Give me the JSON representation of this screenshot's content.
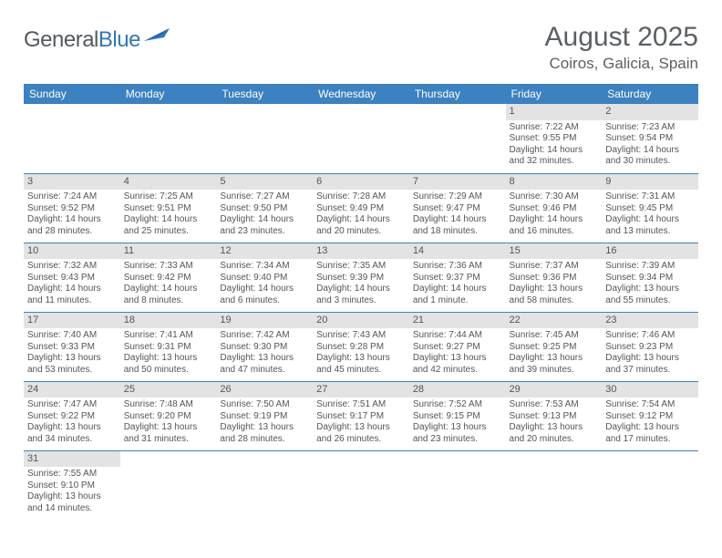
{
  "logo": {
    "text1": "General",
    "text2": "Blue",
    "flag_color": "#2f78b8"
  },
  "header": {
    "title": "August 2025",
    "location": "Coiros, Galicia, Spain"
  },
  "colors": {
    "header_bg": "#3c81c0",
    "header_fg": "#ffffff",
    "daynum_bg": "#e3e3e3",
    "row_divider": "#3c81c0",
    "text": "#555555",
    "logo_gray": "#555a5e",
    "logo_blue": "#2f78b8"
  },
  "weekdays": [
    "Sunday",
    "Monday",
    "Tuesday",
    "Wednesday",
    "Thursday",
    "Friday",
    "Saturday"
  ],
  "calendar": {
    "type": "table",
    "columns": 7,
    "rows": [
      [
        {
          "empty": true
        },
        {
          "empty": true
        },
        {
          "empty": true
        },
        {
          "empty": true
        },
        {
          "empty": true
        },
        {
          "day": "1",
          "sunrise": "Sunrise: 7:22 AM",
          "sunset": "Sunset: 9:55 PM",
          "daylight": "Daylight: 14 hours and 32 minutes."
        },
        {
          "day": "2",
          "sunrise": "Sunrise: 7:23 AM",
          "sunset": "Sunset: 9:54 PM",
          "daylight": "Daylight: 14 hours and 30 minutes."
        }
      ],
      [
        {
          "day": "3",
          "sunrise": "Sunrise: 7:24 AM",
          "sunset": "Sunset: 9:52 PM",
          "daylight": "Daylight: 14 hours and 28 minutes."
        },
        {
          "day": "4",
          "sunrise": "Sunrise: 7:25 AM",
          "sunset": "Sunset: 9:51 PM",
          "daylight": "Daylight: 14 hours and 25 minutes."
        },
        {
          "day": "5",
          "sunrise": "Sunrise: 7:27 AM",
          "sunset": "Sunset: 9:50 PM",
          "daylight": "Daylight: 14 hours and 23 minutes."
        },
        {
          "day": "6",
          "sunrise": "Sunrise: 7:28 AM",
          "sunset": "Sunset: 9:49 PM",
          "daylight": "Daylight: 14 hours and 20 minutes."
        },
        {
          "day": "7",
          "sunrise": "Sunrise: 7:29 AM",
          "sunset": "Sunset: 9:47 PM",
          "daylight": "Daylight: 14 hours and 18 minutes."
        },
        {
          "day": "8",
          "sunrise": "Sunrise: 7:30 AM",
          "sunset": "Sunset: 9:46 PM",
          "daylight": "Daylight: 14 hours and 16 minutes."
        },
        {
          "day": "9",
          "sunrise": "Sunrise: 7:31 AM",
          "sunset": "Sunset: 9:45 PM",
          "daylight": "Daylight: 14 hours and 13 minutes."
        }
      ],
      [
        {
          "day": "10",
          "sunrise": "Sunrise: 7:32 AM",
          "sunset": "Sunset: 9:43 PM",
          "daylight": "Daylight: 14 hours and 11 minutes."
        },
        {
          "day": "11",
          "sunrise": "Sunrise: 7:33 AM",
          "sunset": "Sunset: 9:42 PM",
          "daylight": "Daylight: 14 hours and 8 minutes."
        },
        {
          "day": "12",
          "sunrise": "Sunrise: 7:34 AM",
          "sunset": "Sunset: 9:40 PM",
          "daylight": "Daylight: 14 hours and 6 minutes."
        },
        {
          "day": "13",
          "sunrise": "Sunrise: 7:35 AM",
          "sunset": "Sunset: 9:39 PM",
          "daylight": "Daylight: 14 hours and 3 minutes."
        },
        {
          "day": "14",
          "sunrise": "Sunrise: 7:36 AM",
          "sunset": "Sunset: 9:37 PM",
          "daylight": "Daylight: 14 hours and 1 minute."
        },
        {
          "day": "15",
          "sunrise": "Sunrise: 7:37 AM",
          "sunset": "Sunset: 9:36 PM",
          "daylight": "Daylight: 13 hours and 58 minutes."
        },
        {
          "day": "16",
          "sunrise": "Sunrise: 7:39 AM",
          "sunset": "Sunset: 9:34 PM",
          "daylight": "Daylight: 13 hours and 55 minutes."
        }
      ],
      [
        {
          "day": "17",
          "sunrise": "Sunrise: 7:40 AM",
          "sunset": "Sunset: 9:33 PM",
          "daylight": "Daylight: 13 hours and 53 minutes."
        },
        {
          "day": "18",
          "sunrise": "Sunrise: 7:41 AM",
          "sunset": "Sunset: 9:31 PM",
          "daylight": "Daylight: 13 hours and 50 minutes."
        },
        {
          "day": "19",
          "sunrise": "Sunrise: 7:42 AM",
          "sunset": "Sunset: 9:30 PM",
          "daylight": "Daylight: 13 hours and 47 minutes."
        },
        {
          "day": "20",
          "sunrise": "Sunrise: 7:43 AM",
          "sunset": "Sunset: 9:28 PM",
          "daylight": "Daylight: 13 hours and 45 minutes."
        },
        {
          "day": "21",
          "sunrise": "Sunrise: 7:44 AM",
          "sunset": "Sunset: 9:27 PM",
          "daylight": "Daylight: 13 hours and 42 minutes."
        },
        {
          "day": "22",
          "sunrise": "Sunrise: 7:45 AM",
          "sunset": "Sunset: 9:25 PM",
          "daylight": "Daylight: 13 hours and 39 minutes."
        },
        {
          "day": "23",
          "sunrise": "Sunrise: 7:46 AM",
          "sunset": "Sunset: 9:23 PM",
          "daylight": "Daylight: 13 hours and 37 minutes."
        }
      ],
      [
        {
          "day": "24",
          "sunrise": "Sunrise: 7:47 AM",
          "sunset": "Sunset: 9:22 PM",
          "daylight": "Daylight: 13 hours and 34 minutes."
        },
        {
          "day": "25",
          "sunrise": "Sunrise: 7:48 AM",
          "sunset": "Sunset: 9:20 PM",
          "daylight": "Daylight: 13 hours and 31 minutes."
        },
        {
          "day": "26",
          "sunrise": "Sunrise: 7:50 AM",
          "sunset": "Sunset: 9:19 PM",
          "daylight": "Daylight: 13 hours and 28 minutes."
        },
        {
          "day": "27",
          "sunrise": "Sunrise: 7:51 AM",
          "sunset": "Sunset: 9:17 PM",
          "daylight": "Daylight: 13 hours and 26 minutes."
        },
        {
          "day": "28",
          "sunrise": "Sunrise: 7:52 AM",
          "sunset": "Sunset: 9:15 PM",
          "daylight": "Daylight: 13 hours and 23 minutes."
        },
        {
          "day": "29",
          "sunrise": "Sunrise: 7:53 AM",
          "sunset": "Sunset: 9:13 PM",
          "daylight": "Daylight: 13 hours and 20 minutes."
        },
        {
          "day": "30",
          "sunrise": "Sunrise: 7:54 AM",
          "sunset": "Sunset: 9:12 PM",
          "daylight": "Daylight: 13 hours and 17 minutes."
        }
      ],
      [
        {
          "day": "31",
          "sunrise": "Sunrise: 7:55 AM",
          "sunset": "Sunset: 9:10 PM",
          "daylight": "Daylight: 13 hours and 14 minutes."
        },
        {
          "empty": true
        },
        {
          "empty": true
        },
        {
          "empty": true
        },
        {
          "empty": true
        },
        {
          "empty": true
        },
        {
          "empty": true
        }
      ]
    ]
  }
}
